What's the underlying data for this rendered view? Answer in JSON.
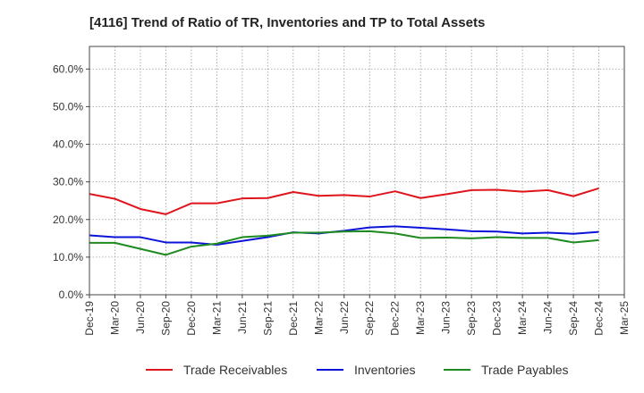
{
  "chart_data": {
    "type": "line",
    "title": "[4116]  Trend of Ratio of TR, Inventories and TP to Total Assets",
    "xlabel": "",
    "ylabel": "",
    "x": [
      "Dec-19",
      "Mar-20",
      "Jun-20",
      "Sep-20",
      "Dec-20",
      "Mar-21",
      "Jun-21",
      "Sep-21",
      "Dec-21",
      "Mar-22",
      "Jun-22",
      "Sep-22",
      "Dec-22",
      "Mar-23",
      "Jun-23",
      "Sep-23",
      "Dec-23",
      "Mar-24",
      "Jun-24",
      "Sep-24",
      "Dec-24",
      "Mar-25"
    ],
    "ylim": [
      0,
      66
    ],
    "yticks": [
      0,
      10,
      20,
      30,
      40,
      50,
      60
    ],
    "ytick_labels": [
      "0.0%",
      "10.0%",
      "20.0%",
      "30.0%",
      "40.0%",
      "50.0%",
      "60.0%"
    ],
    "grid": true,
    "legend_position": "bottom",
    "series": [
      {
        "name": "Trade Receivables",
        "color": "#e0141b",
        "values": [
          26.8,
          25.5,
          22.8,
          21.4,
          24.3,
          24.3,
          25.6,
          25.7,
          27.3,
          26.3,
          26.5,
          26.1,
          27.5,
          25.7,
          26.7,
          27.8,
          27.9,
          27.4,
          27.8,
          26.2,
          28.3,
          null
        ]
      },
      {
        "name": "Inventories",
        "color": "#0b13d9",
        "values": [
          15.8,
          15.3,
          15.3,
          13.9,
          13.9,
          13.3,
          14.3,
          15.3,
          16.6,
          16.3,
          17.0,
          17.9,
          18.2,
          17.8,
          17.4,
          16.9,
          16.8,
          16.3,
          16.5,
          16.2,
          16.7,
          null
        ]
      },
      {
        "name": "Trade Payables",
        "color": "#1f8a1f",
        "values": [
          13.8,
          13.8,
          12.2,
          10.6,
          12.8,
          13.6,
          15.3,
          15.7,
          16.5,
          16.5,
          16.8,
          16.9,
          16.3,
          15.1,
          15.2,
          15.0,
          15.3,
          15.1,
          15.1,
          13.9,
          14.5,
          null
        ]
      }
    ]
  }
}
